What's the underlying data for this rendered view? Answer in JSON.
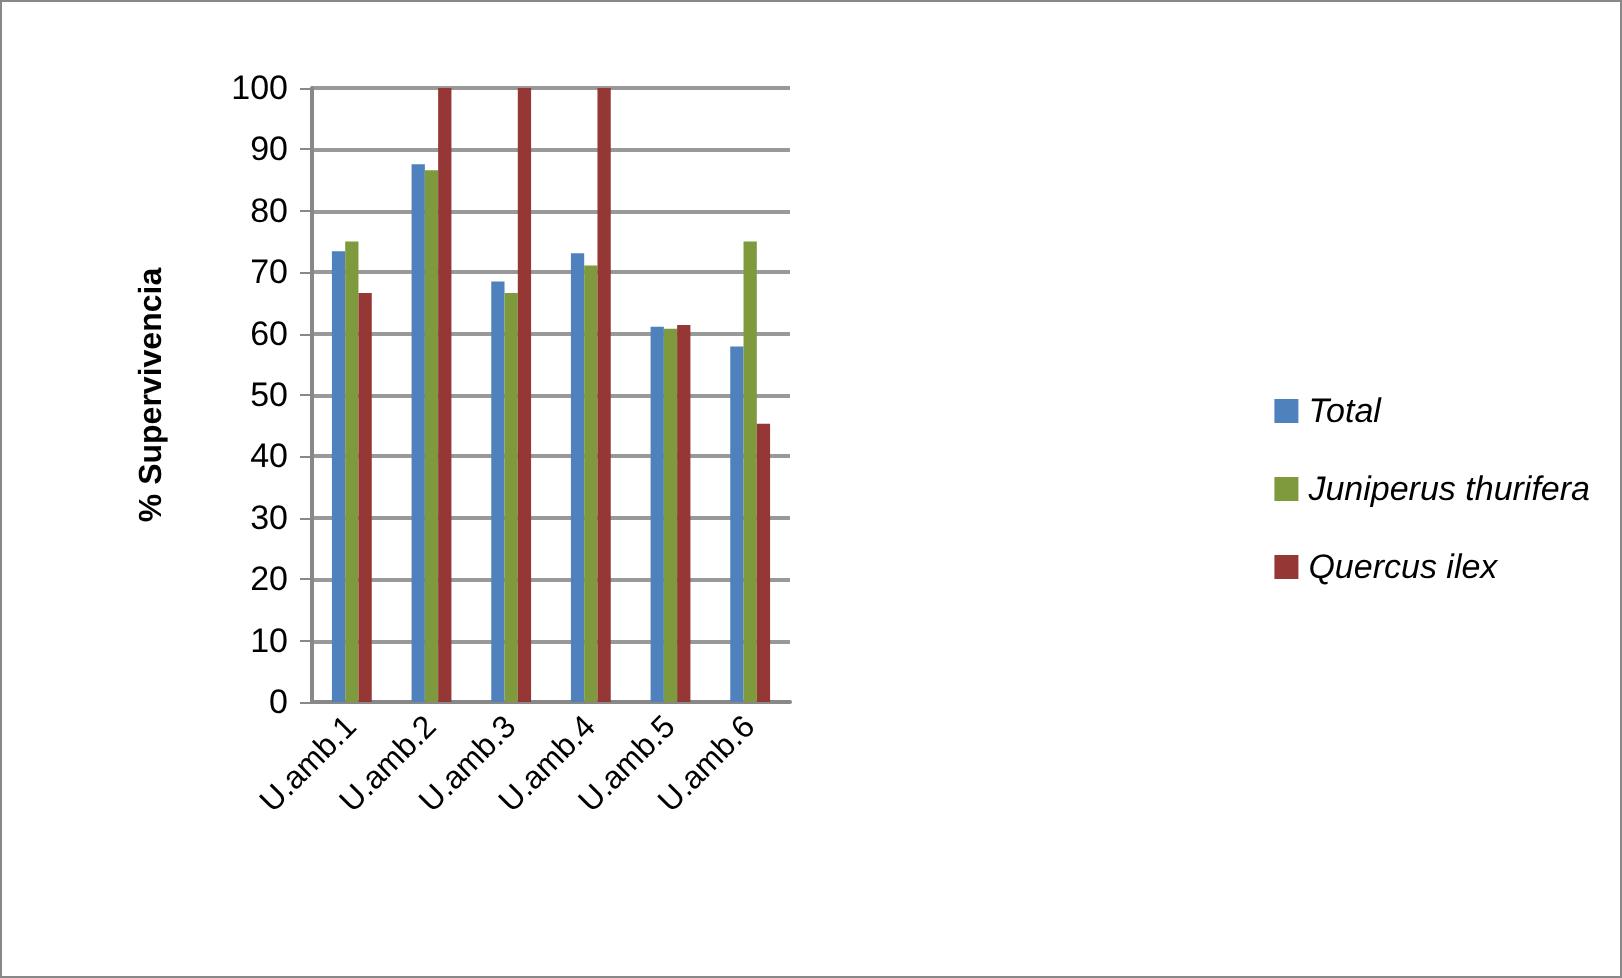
{
  "chart_data": {
    "type": "bar",
    "ylabel": "% Supervivencia",
    "categories": [
      "U.amb.1",
      "U.amb.2",
      "U.amb.3",
      "U.amb.4",
      "U.amb.5",
      "U.amb.6"
    ],
    "series": [
      {
        "name": "Total",
        "color": "#4f81bd",
        "values": [
          73.4,
          87.6,
          68.5,
          73.1,
          61.1,
          57.9
        ]
      },
      {
        "name": "Juniperus thurifera",
        "color": "#7f9a3c",
        "values": [
          75,
          86.6,
          66.6,
          71.1,
          60.8,
          75
        ]
      },
      {
        "name": "Quercus ilex",
        "color": "#953735",
        "values": [
          66.6,
          100,
          100,
          100,
          61.4,
          45.3
        ]
      }
    ],
    "ylim": [
      0,
      100
    ],
    "yticks": [
      0,
      10,
      20,
      30,
      40,
      50,
      60,
      70,
      80,
      90,
      100
    ],
    "grid": "y",
    "legend": "right"
  }
}
